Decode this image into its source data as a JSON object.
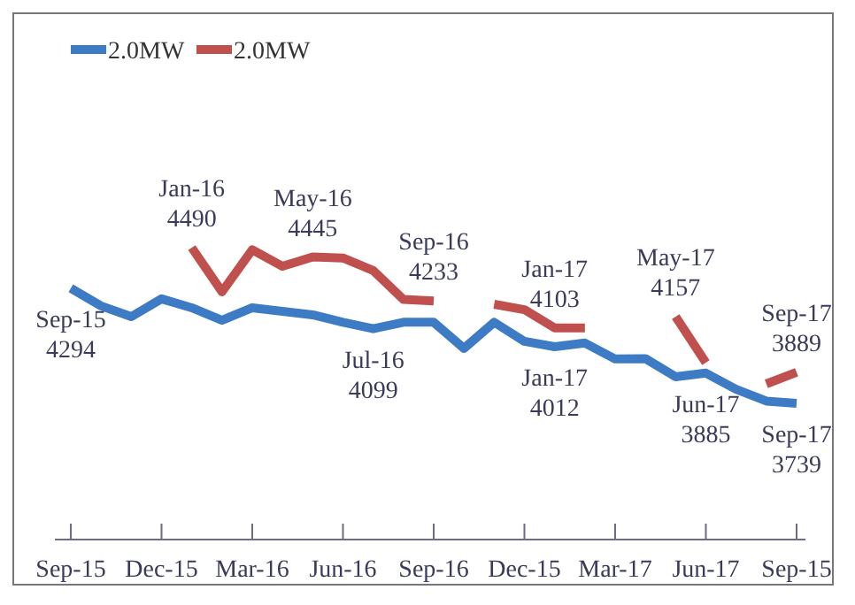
{
  "chart_data": {
    "type": "line",
    "categories": [
      "Sep-15",
      null,
      null,
      "Dec-15",
      null,
      null,
      "Mar-16",
      null,
      null,
      "Jun-16",
      null,
      null,
      "Sep-16",
      null,
      null,
      "Dec-15",
      null,
      null,
      "Mar-17",
      null,
      null,
      "Jun-17",
      null,
      null,
      "Sep-15"
    ],
    "series": [
      {
        "name": "2.0MW",
        "color": "#3d7cc4",
        "values": [
          4294,
          4209,
          4157,
          4243,
          4200,
          4140,
          4200,
          4183,
          4166,
          4130,
          4099,
          4130,
          4130,
          4004,
          4130,
          4038,
          4012,
          4030,
          3953,
          3955,
          3867,
          3885,
          3807,
          3750,
          3739
        ],
        "value_labels": [
          "Sep-15\n4294",
          null,
          null,
          null,
          null,
          null,
          null,
          null,
          null,
          null,
          "Jul-16\n4099",
          null,
          null,
          null,
          null,
          null,
          "Jan-17\n4012",
          null,
          null,
          null,
          null,
          "Jun-17\n3885",
          null,
          null,
          "Sep-17\n3739"
        ]
      },
      {
        "name": "2.0MW",
        "color": "#c0504d",
        "values": [
          null,
          null,
          null,
          null,
          4490,
          4277,
          4480,
          4400,
          4445,
          4440,
          4380,
          4240,
          4233,
          null,
          4217,
          4191,
          4103,
          4103,
          null,
          null,
          4157,
          3935,
          null,
          3833,
          3889
        ],
        "value_labels": [
          null,
          null,
          null,
          null,
          "Jan-16\n4490",
          null,
          null,
          null,
          "May-16\n4445",
          null,
          null,
          null,
          "Sep-16\n4233",
          null,
          null,
          null,
          "Jan-17\n4103",
          null,
          null,
          null,
          "May-17\n4157",
          null,
          null,
          null,
          "Sep-17\n3889"
        ]
      }
    ],
    "tick_labels": "x",
    "legend": "top left",
    "line_style": "solid",
    "marker": "none"
  }
}
